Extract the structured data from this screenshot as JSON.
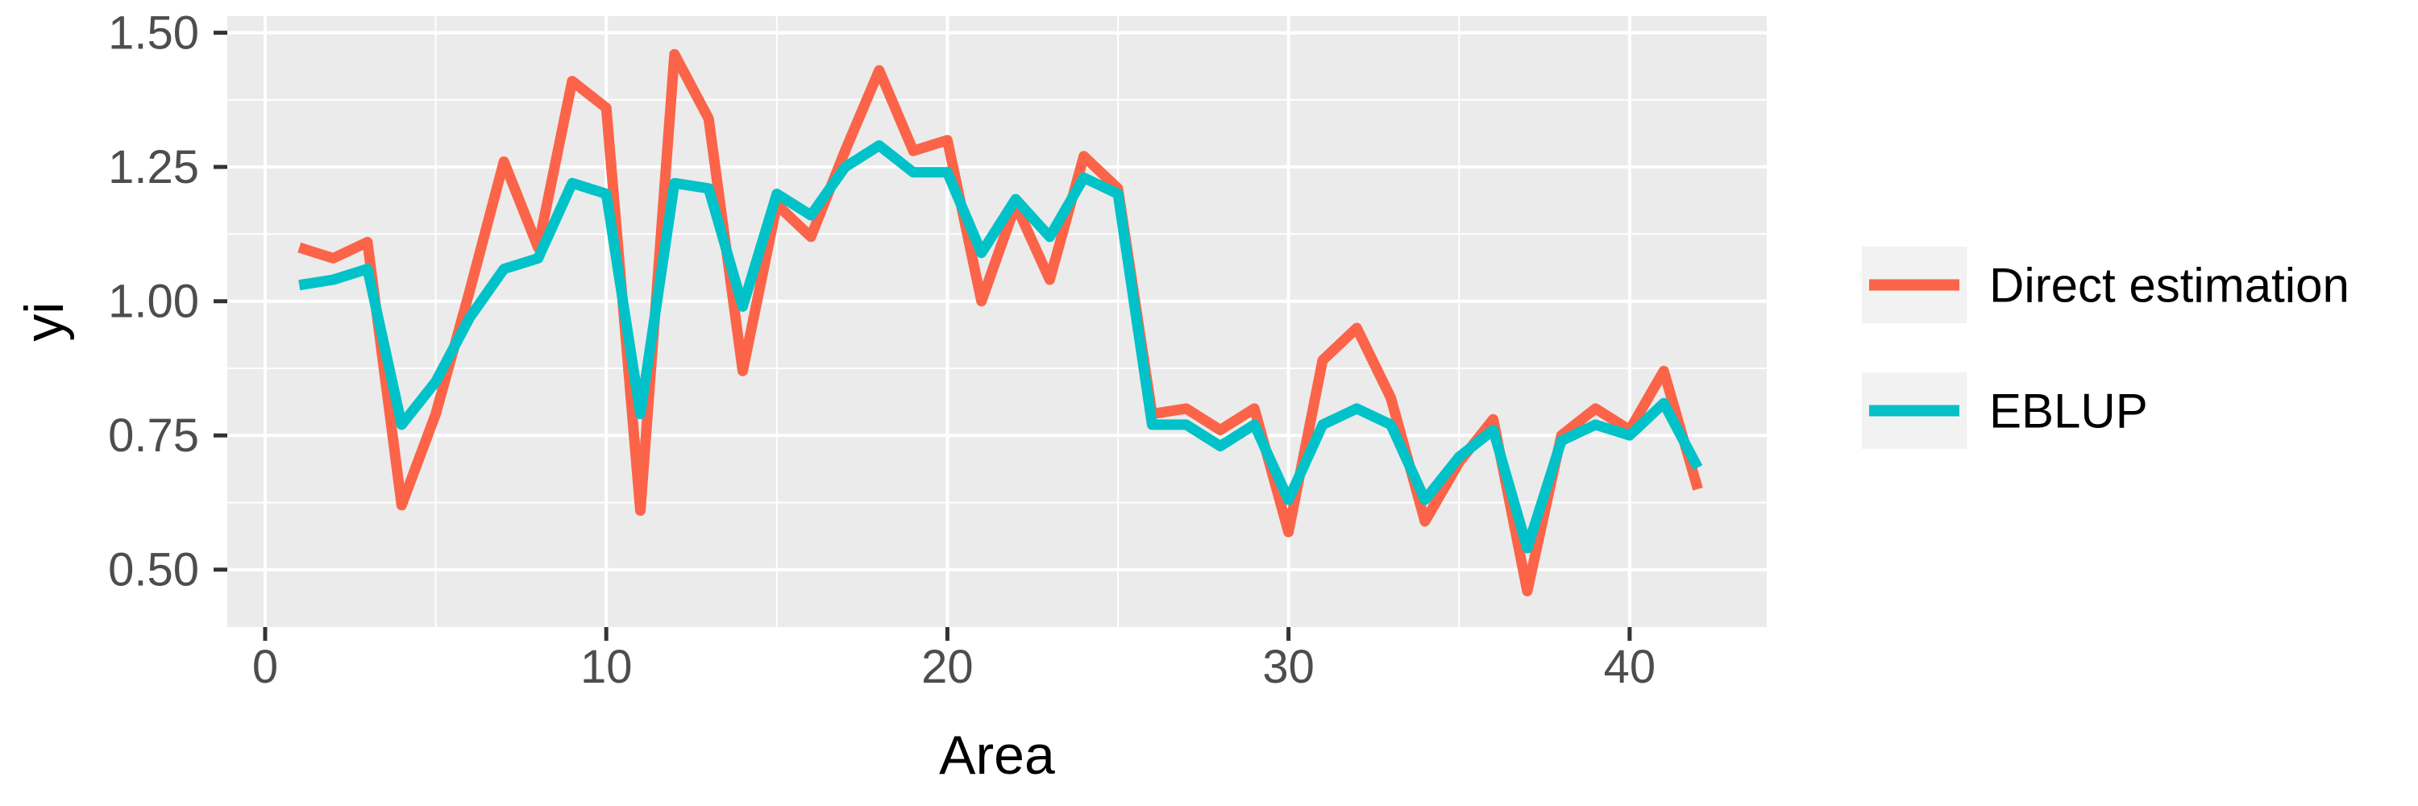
{
  "chart_data": {
    "type": "line",
    "title": "",
    "xlabel": "Area",
    "ylabel": "yi",
    "x": [
      1,
      2,
      3,
      4,
      5,
      6,
      7,
      8,
      9,
      10,
      11,
      12,
      13,
      14,
      15,
      16,
      17,
      18,
      19,
      20,
      21,
      22,
      23,
      24,
      25,
      26,
      27,
      28,
      29,
      30,
      31,
      32,
      33,
      34,
      35,
      36,
      37,
      38,
      39,
      40,
      41,
      42
    ],
    "series": [
      {
        "name": "Direct estimation",
        "color": "#FB6448",
        "values": [
          1.1,
          1.08,
          1.11,
          0.62,
          0.79,
          1.02,
          1.26,
          1.1,
          1.41,
          1.36,
          0.61,
          1.46,
          1.34,
          0.87,
          1.18,
          1.12,
          1.28,
          1.43,
          1.28,
          1.3,
          1.0,
          1.18,
          1.04,
          1.27,
          1.21,
          0.79,
          0.8,
          0.76,
          0.8,
          0.57,
          0.89,
          0.95,
          0.82,
          0.59,
          0.7,
          0.78,
          0.46,
          0.75,
          0.8,
          0.76,
          0.87,
          0.65
        ]
      },
      {
        "name": "EBLUP",
        "color": "#00C2C8",
        "values": [
          1.03,
          1.04,
          1.06,
          0.77,
          0.85,
          0.97,
          1.06,
          1.08,
          1.22,
          1.2,
          0.79,
          1.22,
          1.21,
          0.99,
          1.2,
          1.16,
          1.25,
          1.29,
          1.24,
          1.24,
          1.09,
          1.19,
          1.12,
          1.23,
          1.2,
          0.77,
          0.77,
          0.73,
          0.77,
          0.63,
          0.77,
          0.8,
          0.77,
          0.63,
          0.71,
          0.76,
          0.54,
          0.74,
          0.77,
          0.75,
          0.81,
          0.69
        ]
      }
    ],
    "x_ticks": [
      {
        "value": 0,
        "label": "0"
      },
      {
        "value": 10,
        "label": "10"
      },
      {
        "value": 20,
        "label": "20"
      },
      {
        "value": 30,
        "label": "30"
      },
      {
        "value": 40,
        "label": "40"
      }
    ],
    "x_minor_breaks": [
      5,
      15,
      25,
      35
    ],
    "y_ticks": [
      {
        "value": 0.5,
        "label": "0.50"
      },
      {
        "value": 0.75,
        "label": "0.75"
      },
      {
        "value": 1.0,
        "label": "1.00"
      },
      {
        "value": 1.25,
        "label": "1.25"
      },
      {
        "value": 1.5,
        "label": "1.50"
      }
    ],
    "y_minor_breaks": [
      0.625,
      0.875,
      1.125,
      1.375
    ],
    "xlim": [
      -1.11,
      44.02
    ],
    "ylim": [
      0.393,
      1.531
    ],
    "grid": true,
    "legend_position": "right",
    "colors": {
      "panel_background": "#EBEBEB",
      "grid_line": "#FFFFFF",
      "tick_mark": "#333333",
      "tick_label": "#4D4D4D",
      "axis_title": "#000000",
      "legend_key_background": "#F2F2F2",
      "legend_text": "#000000",
      "page_background": "#FFFFFF"
    }
  }
}
